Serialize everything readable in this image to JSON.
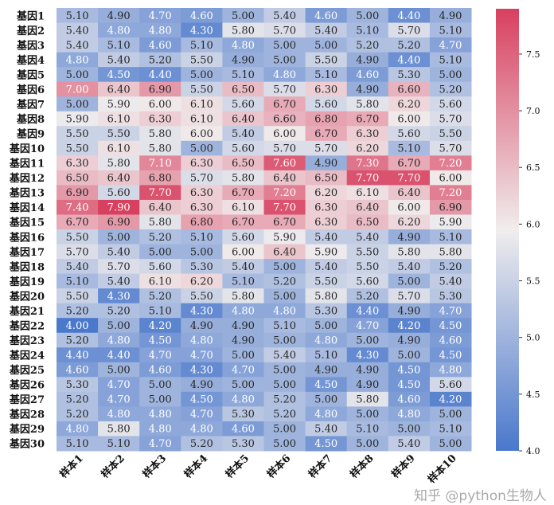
{
  "chart_data": {
    "type": "heatmap",
    "title": "",
    "xlabel": "",
    "ylabel": "",
    "x_categories": [
      "样本1",
      "样本2",
      "样本3",
      "样本4",
      "样本5",
      "样本6",
      "样本7",
      "样本8",
      "样本9",
      "样本10"
    ],
    "y_categories": [
      "基因1",
      "基因2",
      "基因3",
      "基因4",
      "基因5",
      "基因6",
      "基因7",
      "基因8",
      "基因9",
      "基因10",
      "基因11",
      "基因12",
      "基因13",
      "基因14",
      "基因15",
      "基因16",
      "基因17",
      "基因18",
      "基因19",
      "基因20",
      "基因21",
      "基因22",
      "基因23",
      "基因24",
      "基因25",
      "基因26",
      "基因27",
      "基因28",
      "基因29",
      "基因30"
    ],
    "values": [
      [
        5.1,
        4.9,
        4.7,
        4.6,
        5.0,
        5.4,
        4.6,
        5.0,
        4.4,
        4.9
      ],
      [
        5.4,
        4.8,
        4.8,
        4.3,
        5.8,
        5.7,
        5.4,
        5.1,
        5.7,
        5.1
      ],
      [
        5.4,
        5.1,
        4.6,
        5.1,
        4.8,
        5.0,
        5.0,
        5.2,
        5.2,
        4.7
      ],
      [
        4.8,
        5.4,
        5.2,
        5.5,
        4.9,
        5.0,
        5.5,
        4.9,
        4.4,
        5.1
      ],
      [
        5.0,
        4.5,
        4.4,
        5.0,
        5.1,
        4.8,
        5.1,
        4.6,
        5.3,
        5.0
      ],
      [
        7.0,
        6.4,
        6.9,
        5.5,
        6.5,
        5.7,
        6.3,
        4.9,
        6.6,
        5.2
      ],
      [
        5.0,
        5.9,
        6.0,
        6.1,
        5.6,
        6.7,
        5.6,
        5.8,
        6.2,
        5.6
      ],
      [
        5.9,
        6.1,
        6.3,
        6.1,
        6.4,
        6.6,
        6.8,
        6.7,
        6.0,
        5.7
      ],
      [
        5.5,
        5.5,
        5.8,
        6.0,
        5.4,
        6.0,
        6.7,
        6.3,
        5.6,
        5.5
      ],
      [
        5.5,
        6.1,
        5.8,
        5.0,
        5.6,
        5.7,
        5.7,
        6.2,
        5.1,
        5.7
      ],
      [
        6.3,
        5.8,
        7.1,
        6.3,
        6.5,
        7.6,
        4.9,
        7.3,
        6.7,
        7.2
      ],
      [
        6.5,
        6.4,
        6.8,
        5.7,
        5.8,
        6.4,
        6.5,
        7.7,
        7.7,
        6.0
      ],
      [
        6.9,
        5.6,
        7.7,
        6.3,
        6.7,
        7.2,
        6.2,
        6.1,
        6.4,
        7.2
      ],
      [
        7.4,
        7.9,
        6.4,
        6.3,
        6.1,
        7.7,
        6.3,
        6.4,
        6.0,
        6.9
      ],
      [
        6.7,
        6.9,
        5.8,
        6.8,
        6.7,
        6.7,
        6.3,
        6.5,
        6.2,
        5.9
      ],
      [
        5.5,
        5.0,
        5.2,
        5.1,
        5.6,
        5.9,
        5.4,
        5.4,
        4.9,
        5.1
      ],
      [
        5.7,
        5.4,
        5.0,
        5.0,
        6.0,
        6.4,
        5.9,
        5.5,
        5.8,
        5.8
      ],
      [
        5.4,
        5.7,
        5.6,
        5.3,
        5.4,
        5.0,
        5.4,
        5.5,
        5.4,
        5.2
      ],
      [
        5.1,
        5.4,
        6.1,
        6.2,
        5.1,
        5.2,
        5.5,
        5.6,
        5.0,
        5.4
      ],
      [
        5.5,
        4.3,
        5.2,
        5.5,
        5.8,
        5.0,
        5.8,
        5.2,
        5.7,
        5.3
      ],
      [
        5.2,
        5.2,
        5.1,
        4.3,
        4.8,
        4.8,
        5.3,
        4.4,
        4.9,
        4.7
      ],
      [
        4.0,
        5.0,
        4.2,
        4.9,
        4.9,
        5.1,
        5.0,
        4.7,
        4.2,
        4.5
      ],
      [
        5.2,
        4.8,
        4.5,
        4.8,
        4.9,
        5.0,
        4.8,
        5.0,
        4.9,
        4.6
      ],
      [
        4.4,
        4.4,
        4.7,
        4.7,
        5.0,
        5.4,
        5.1,
        4.3,
        5.0,
        4.5
      ],
      [
        4.6,
        5.0,
        4.6,
        4.3,
        4.7,
        5.0,
        4.9,
        4.9,
        4.5,
        4.8
      ],
      [
        5.3,
        4.7,
        5.0,
        4.9,
        5.0,
        5.0,
        4.5,
        4.9,
        4.5,
        5.6
      ],
      [
        5.2,
        4.7,
        5.0,
        4.5,
        4.8,
        5.2,
        5.0,
        5.8,
        4.6,
        4.2
      ],
      [
        5.2,
        4.8,
        4.8,
        4.7,
        5.3,
        5.2,
        4.8,
        5.0,
        4.8,
        5.0
      ],
      [
        4.8,
        5.8,
        4.8,
        4.8,
        4.6,
        5.0,
        5.4,
        5.1,
        5.0,
        5.1
      ],
      [
        5.1,
        5.1,
        4.7,
        5.2,
        5.3,
        5.0,
        4.5,
        5.0,
        5.4,
        5.0
      ]
    ],
    "annotation_format": "0.00",
    "colormap": {
      "low": "#4a78cc",
      "mid": "#f0eded",
      "high": "#d8405f"
    },
    "color_range": [
      4.0,
      7.9
    ],
    "colorbar": {
      "ticks": [
        4.0,
        4.5,
        5.0,
        5.5,
        6.0,
        6.5,
        7.0,
        7.5
      ],
      "tick_labels": [
        "4.0",
        "4.5",
        "5.0",
        "5.5",
        "6.0",
        "6.5",
        "7.0",
        "7.5"
      ],
      "placement": "right"
    },
    "grid": false
  },
  "watermark": "知乎 @python生物人"
}
